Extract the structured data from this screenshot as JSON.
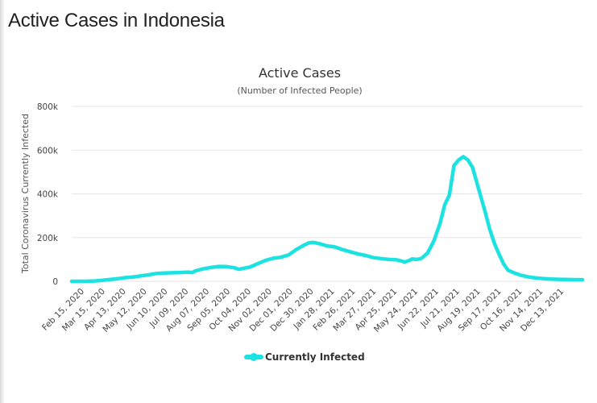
{
  "page": {
    "heading": "Active Cases in Indonesia"
  },
  "chart_data": {
    "type": "line",
    "title": "Active Cases",
    "subtitle": "(Number of Infected People)",
    "ylabel": "Total Coronavirus Currently Infected",
    "xlabel": "",
    "ylim": [
      0,
      800000
    ],
    "yticks": [
      {
        "value": 0,
        "label": "0"
      },
      {
        "value": 200000,
        "label": "200k"
      },
      {
        "value": 400000,
        "label": "400k"
      },
      {
        "value": 600000,
        "label": "600k"
      },
      {
        "value": 800000,
        "label": "800k"
      }
    ],
    "categories": [
      "Feb 15, 2020",
      "Mar 15, 2020",
      "Apr 13, 2020",
      "May 12, 2020",
      "Jun 10, 2020",
      "Jul 09, 2020",
      "Aug 07, 2020",
      "Sep 05, 2020",
      "Oct 04, 2020",
      "Nov 02, 2020",
      "Dec 01, 2020",
      "Dec 30, 2020",
      "Jan 28, 2021",
      "Feb 26, 2021",
      "Mar 27, 2021",
      "Apr 25, 2021",
      "May 24, 2021",
      "Jun 22, 2021",
      "Jul 21, 2021",
      "Aug 19, 2021",
      "Sep 17, 2021",
      "Oct 16, 2021",
      "Nov 14, 2021",
      "Dec 13, 2021"
    ],
    "x_span": [
      0,
      24
    ],
    "grid": true,
    "legend_position": "bottom-center",
    "series": [
      {
        "name": "Currently Infected",
        "color": "#1de2e2",
        "points": [
          [
            0,
            0
          ],
          [
            1,
            200
          ],
          [
            1.5,
            1500
          ],
          [
            2,
            4500
          ],
          [
            2.5,
            8000
          ],
          [
            3,
            12000
          ],
          [
            3.5,
            17000
          ],
          [
            4,
            20000
          ],
          [
            4.5,
            25000
          ],
          [
            5,
            30000
          ],
          [
            5.5,
            36000
          ],
          [
            6,
            38000
          ],
          [
            6.5,
            39000
          ],
          [
            7,
            40000
          ],
          [
            7.5,
            42000
          ],
          [
            7.8,
            40000
          ],
          [
            8,
            48000
          ],
          [
            8.5,
            57000
          ],
          [
            9,
            63000
          ],
          [
            9.5,
            68000
          ],
          [
            10,
            67000
          ],
          [
            10.5,
            62000
          ],
          [
            10.8,
            55000
          ],
          [
            11,
            58000
          ],
          [
            11.5,
            65000
          ],
          [
            12,
            80000
          ],
          [
            12.5,
            95000
          ],
          [
            13,
            105000
          ],
          [
            13.5,
            110000
          ],
          [
            14,
            120000
          ],
          [
            14.5,
            145000
          ],
          [
            15,
            165000
          ],
          [
            15.3,
            175000
          ],
          [
            15.6,
            178000
          ],
          [
            16,
            172000
          ],
          [
            16.5,
            162000
          ],
          [
            17,
            157000
          ],
          [
            17.5,
            145000
          ],
          [
            18,
            135000
          ],
          [
            18.5,
            125000
          ],
          [
            19,
            118000
          ],
          [
            19.5,
            108000
          ],
          [
            20,
            104000
          ],
          [
            20.5,
            100000
          ],
          [
            21,
            98000
          ],
          [
            21.3,
            93000
          ],
          [
            21.5,
            88000
          ],
          [
            21.8,
            95000
          ],
          [
            22,
            102000
          ],
          [
            22.3,
            100000
          ],
          [
            22.6,
            105000
          ],
          [
            23,
            130000
          ],
          [
            23.4,
            185000
          ],
          [
            23.8,
            265000
          ],
          [
            24.1,
            350000
          ],
          [
            24.4,
            395000
          ],
          [
            24.7,
            530000
          ],
          [
            25,
            555000
          ],
          [
            25.3,
            570000
          ],
          [
            25.6,
            555000
          ],
          [
            25.9,
            520000
          ],
          [
            26.1,
            470000
          ],
          [
            26.4,
            395000
          ],
          [
            26.7,
            320000
          ],
          [
            27,
            240000
          ],
          [
            27.3,
            175000
          ],
          [
            27.6,
            125000
          ],
          [
            27.9,
            80000
          ],
          [
            28.2,
            50000
          ],
          [
            28.6,
            38000
          ],
          [
            29,
            28000
          ],
          [
            29.5,
            20000
          ],
          [
            30,
            15000
          ],
          [
            30.5,
            12000
          ],
          [
            31,
            10000
          ],
          [
            31.5,
            9000
          ],
          [
            32,
            8000
          ],
          [
            32.5,
            7500
          ],
          [
            33,
            7000
          ]
        ]
      }
    ]
  }
}
